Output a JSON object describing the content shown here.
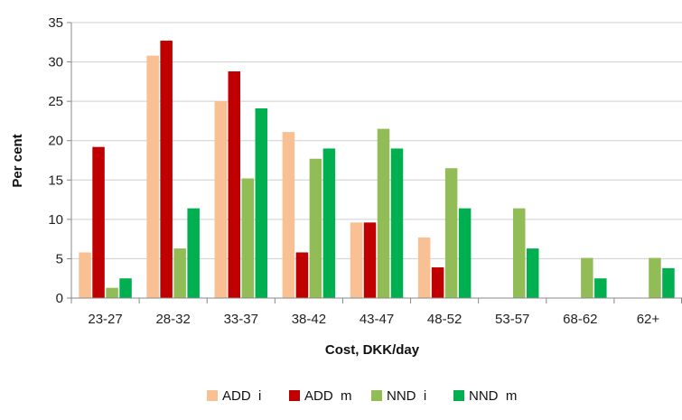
{
  "chart_data": {
    "type": "bar",
    "title": "",
    "xlabel": "Cost, DKK/day",
    "ylabel": "Per cent",
    "ylim": [
      0,
      35
    ],
    "yticks": [
      0,
      5,
      10,
      15,
      20,
      25,
      30,
      35
    ],
    "grid": true,
    "legend_position": "bottom",
    "categories": [
      "23-27",
      "28-32",
      "33-37",
      "38-42",
      "43-47",
      "48-52",
      "53-57",
      "68-62",
      "62+"
    ],
    "series": [
      {
        "name": "ADD i",
        "color": "#f8c093",
        "values": [
          5.8,
          30.8,
          25.0,
          21.1,
          9.6,
          7.7,
          0,
          0,
          0
        ]
      },
      {
        "name": "ADD m",
        "color": "#c00000",
        "values": [
          19.2,
          32.7,
          28.8,
          5.8,
          9.6,
          3.9,
          0,
          0,
          0
        ]
      },
      {
        "name": "NND i",
        "color": "#92bc55",
        "values": [
          1.3,
          6.3,
          15.2,
          17.7,
          21.5,
          16.5,
          11.4,
          5.1,
          5.1
        ]
      },
      {
        "name": "NND m",
        "color": "#00b050",
        "values": [
          2.5,
          11.4,
          24.1,
          19.0,
          19.0,
          11.4,
          6.3,
          2.5,
          3.8
        ]
      }
    ]
  }
}
